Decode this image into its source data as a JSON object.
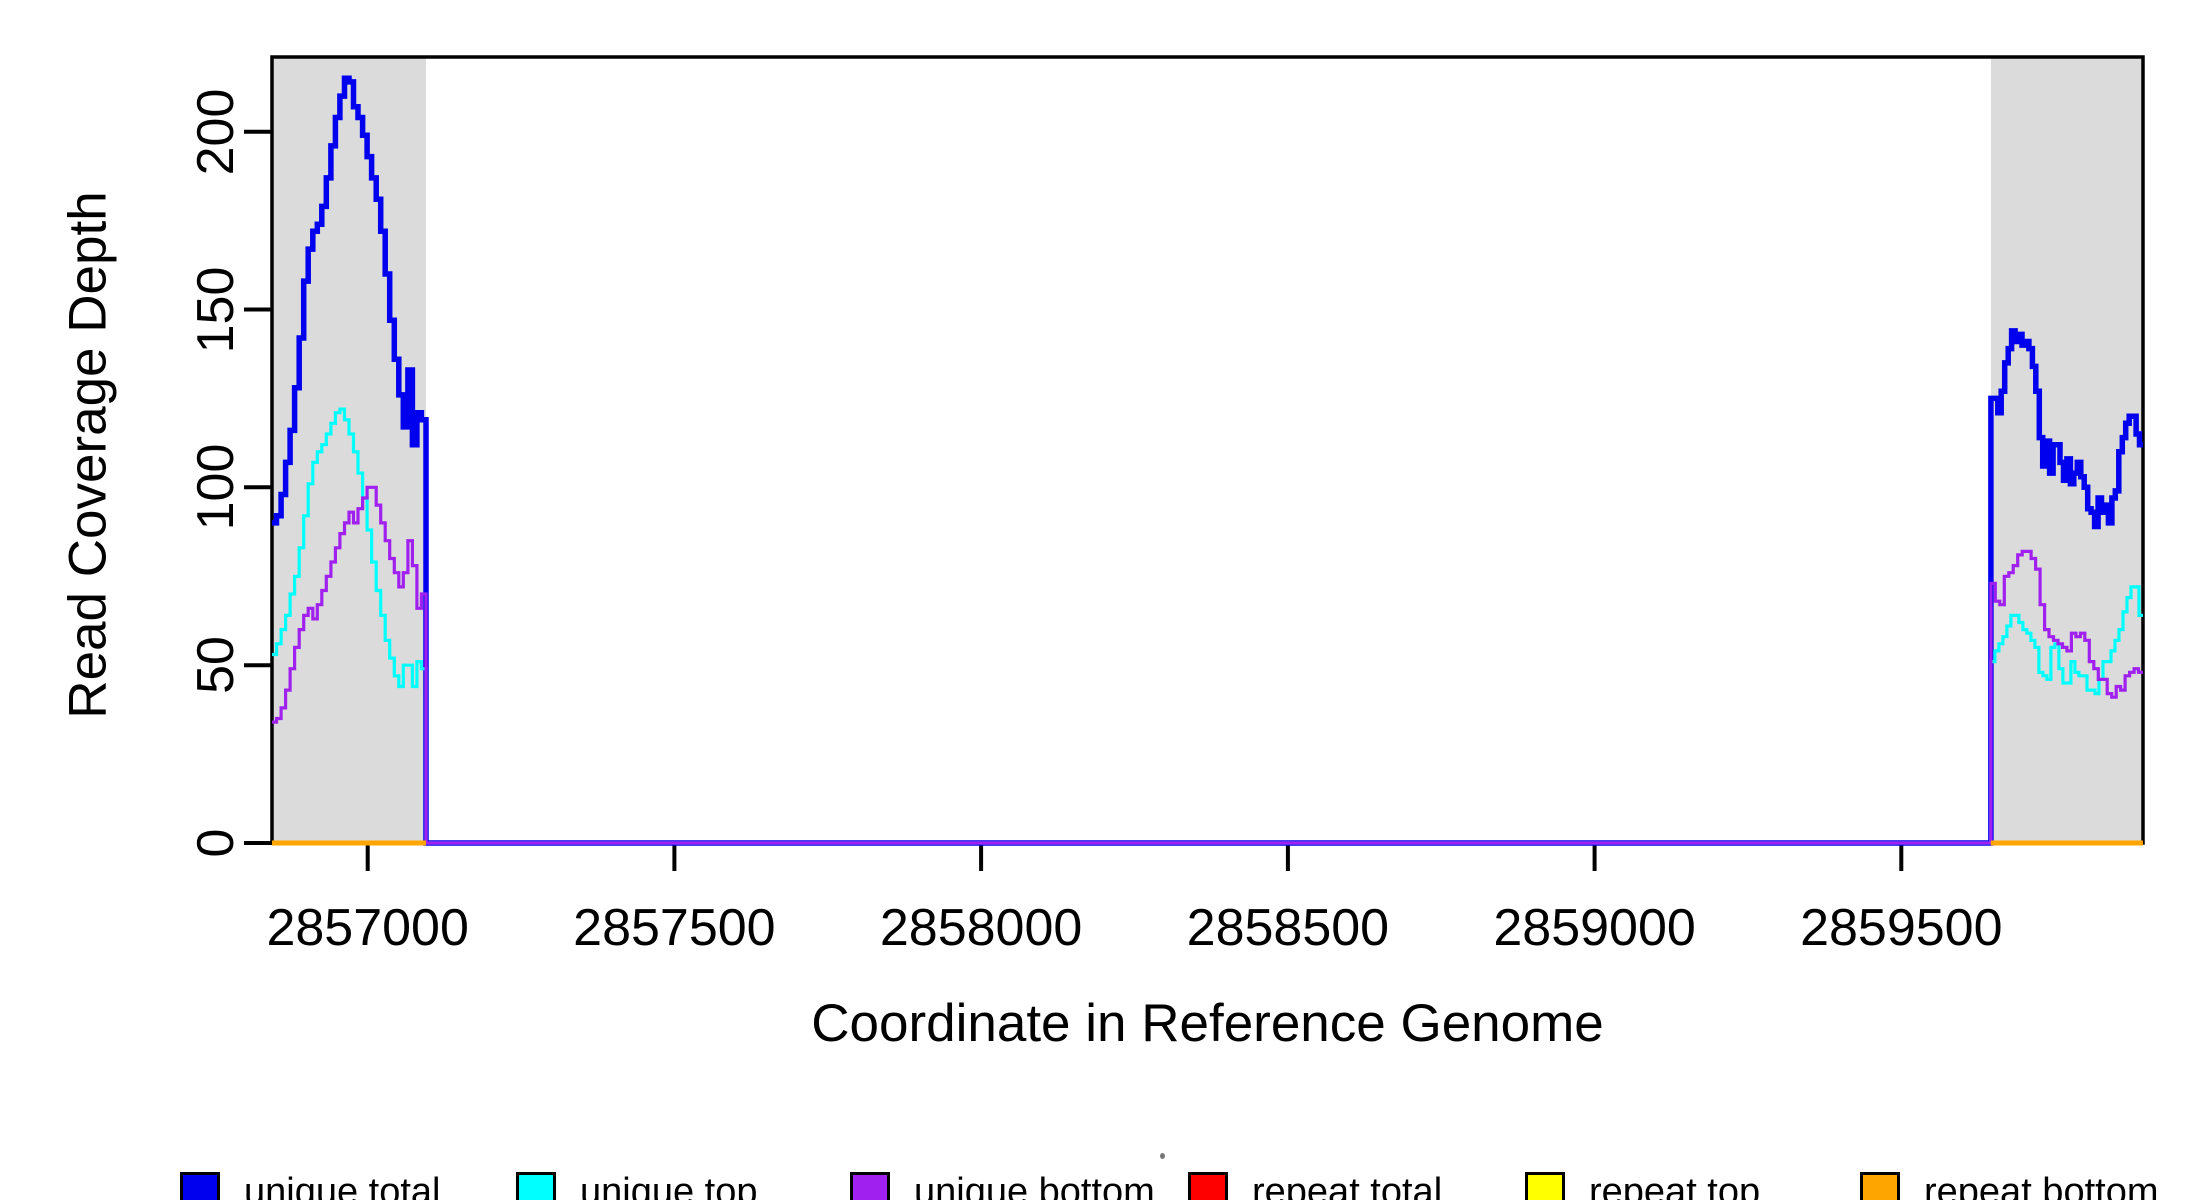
{
  "chart_data": {
    "type": "line",
    "line_style": "step",
    "title": "",
    "xlabel": "Coordinate in Reference Genome",
    "ylabel": "Read Coverage Depth",
    "xlim": [
      2856844,
      2859894
    ],
    "ylim": [
      0,
      221
    ],
    "grid": false,
    "x_ticks": [
      2857000,
      2857500,
      2858000,
      2858500,
      2859000,
      2859500
    ],
    "y_ticks": [
      0,
      50,
      100,
      150,
      200
    ],
    "axis_color": "#000000",
    "background_color": "#ffffff",
    "highlight_regions": [
      {
        "x_start": 2856844,
        "x_end": 2857095,
        "color": "#dbdbdb"
      },
      {
        "x_start": 2859646,
        "x_end": 2859894,
        "color": "#dbdbdb"
      }
    ],
    "series": [
      {
        "name": "unique total",
        "color": "#0000ee",
        "line_width": 5.5,
        "segments": [
          {
            "x_start": 2856844,
            "x_end": 2857095,
            "values": [
              90,
              92,
              98,
              107,
              116,
              128,
              142,
              158,
              167,
              172,
              174,
              179,
              187,
              196,
              204,
              210,
              215,
              214,
              207,
              204,
              199,
              193,
              187,
              181,
              172,
              160,
              147,
              136,
              126,
              117,
              133,
              112,
              121,
              119
            ]
          },
          {
            "x_start": 2857095,
            "x_end": 2859646,
            "values": [
              0
            ]
          },
          {
            "x_start": 2859646,
            "x_end": 2859894,
            "values": [
              125,
              125,
              121,
              127,
              135,
              139,
              144,
              141,
              143,
              140,
              141,
              139,
              134,
              127,
              114,
              106,
              113,
              104,
              112,
              112,
              107,
              102,
              108,
              101,
              104,
              107,
              103,
              100,
              94,
              93,
              89,
              97,
              93,
              95,
              90,
              97,
              99,
              110,
              114,
              118,
              120,
              120,
              115,
              112
            ]
          }
        ]
      },
      {
        "name": "unique top",
        "color": "#00ffff",
        "line_width": 3.2,
        "segments": [
          {
            "x_start": 2856844,
            "x_end": 2857095,
            "values": [
              53,
              56,
              60,
              64,
              70,
              75,
              83,
              92,
              101,
              107,
              110,
              112,
              115,
              118,
              121,
              122,
              119,
              115,
              110,
              104,
              97,
              88,
              79,
              71,
              64,
              57,
              52,
              47,
              44,
              50,
              50,
              44,
              51,
              49
            ]
          },
          {
            "x_start": 2857095,
            "x_end": 2859646,
            "values": [
              0
            ]
          },
          {
            "x_start": 2859646,
            "x_end": 2859894,
            "values": [
              51,
              54,
              56,
              58,
              61,
              64,
              64,
              62,
              60,
              59,
              57,
              55,
              48,
              47,
              46,
              55,
              56,
              49,
              45,
              45,
              51,
              48,
              47,
              47,
              43,
              43,
              42,
              46,
              51,
              51,
              54,
              57,
              60,
              65,
              69,
              72,
              72,
              64
            ]
          }
        ]
      },
      {
        "name": "unique bottom",
        "color": "#a020f0",
        "line_width": 3.2,
        "segments": [
          {
            "x_start": 2856844,
            "x_end": 2857095,
            "values": [
              34,
              35,
              38,
              43,
              49,
              55,
              60,
              64,
              66,
              63,
              67,
              71,
              75,
              79,
              83,
              87,
              90,
              93,
              90,
              94,
              97,
              100,
              100,
              95,
              90,
              85,
              80,
              76,
              72,
              76,
              85,
              78,
              66,
              70
            ]
          },
          {
            "x_start": 2857095,
            "x_end": 2859646,
            "values": [
              0
            ]
          },
          {
            "x_start": 2859646,
            "x_end": 2859894,
            "values": [
              73,
              68,
              67,
              75,
              76,
              78,
              81,
              82,
              82,
              80,
              77,
              67,
              60,
              58,
              57,
              56,
              55,
              54,
              59,
              58,
              59,
              57,
              51,
              49,
              46,
              46,
              42,
              41,
              44,
              43,
              47,
              48,
              49,
              48
            ]
          }
        ]
      },
      {
        "name": "repeat total",
        "color": "#ff0000",
        "line_width": 3.2,
        "segments": [
          {
            "x_start": 2856844,
            "x_end": 2857095,
            "values": [
              0
            ]
          },
          {
            "x_start": 2859646,
            "x_end": 2859894,
            "values": [
              0
            ]
          }
        ]
      },
      {
        "name": "repeat top",
        "color": "#ffff00",
        "line_width": 3.2,
        "segments": [
          {
            "x_start": 2856844,
            "x_end": 2857095,
            "values": [
              0
            ]
          },
          {
            "x_start": 2859646,
            "x_end": 2859894,
            "values": [
              0
            ]
          }
        ]
      },
      {
        "name": "repeat bottom",
        "color": "#ffa500",
        "line_width": 5,
        "segments": [
          {
            "x_start": 2856844,
            "x_end": 2857095,
            "values": [
              0
            ]
          },
          {
            "x_start": 2859646,
            "x_end": 2859894,
            "values": [
              0
            ]
          }
        ]
      }
    ],
    "legend": {
      "position": "bottom",
      "entries": [
        {
          "label": "unique total",
          "color": "#0000ee"
        },
        {
          "label": "unique top",
          "color": "#00ffff"
        },
        {
          "label": "unique bottom",
          "color": "#a020f0"
        },
        {
          "label": "repeat total",
          "color": "#ff0000"
        },
        {
          "label": "repeat top",
          "color": "#ffff00"
        },
        {
          "label": "repeat bottom",
          "color": "#ffa500"
        }
      ]
    }
  }
}
